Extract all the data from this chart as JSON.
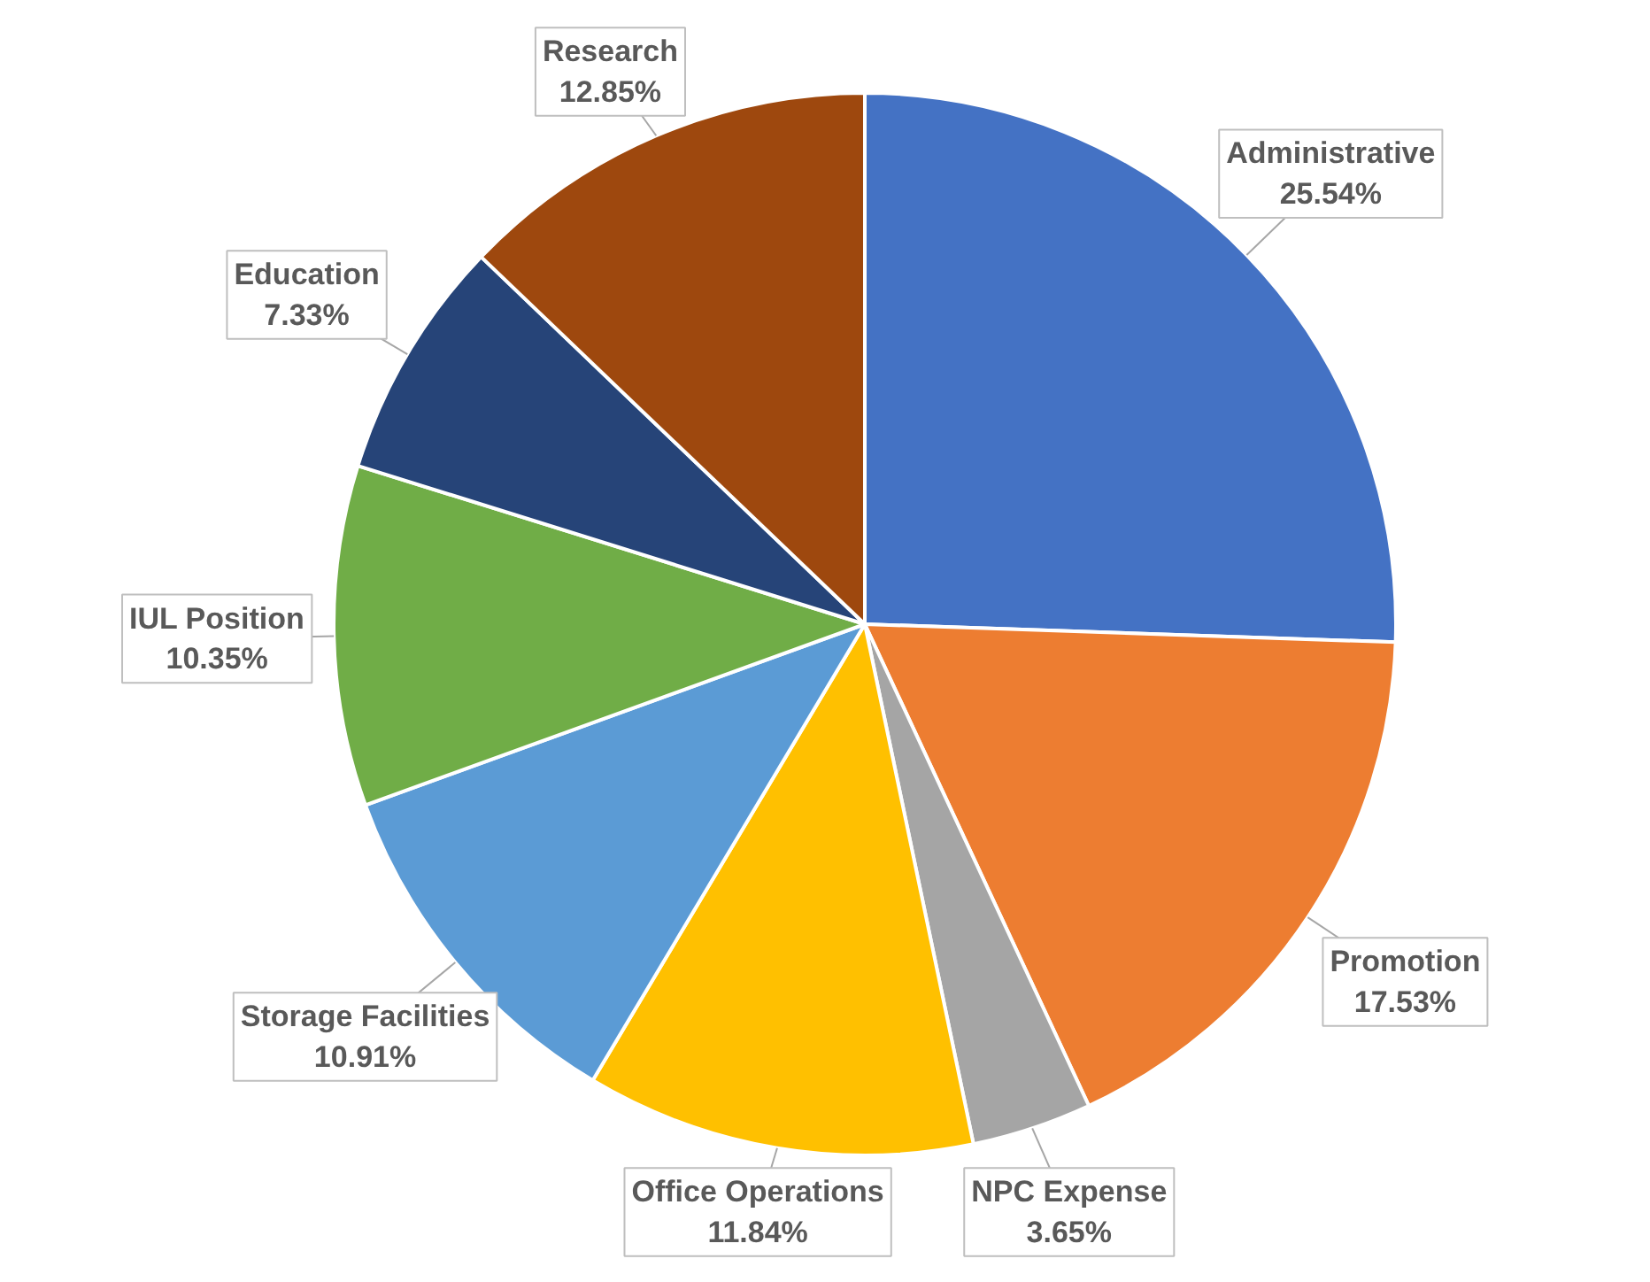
{
  "chart_data": {
    "type": "pie",
    "categories": [
      "Administrative",
      "Promotion",
      "NPC Expense",
      "Office Operations",
      "Storage Facilities",
      "IUL Position",
      "Education",
      "Research"
    ],
    "values": [
      25.54,
      17.53,
      3.65,
      11.84,
      10.91,
      10.35,
      7.33,
      12.85
    ],
    "value_labels": [
      "25.54%",
      "17.53%",
      "3.65%",
      "11.84%",
      "10.91%",
      "10.35%",
      "7.33%",
      "12.85%"
    ],
    "colors": [
      "#4472c4",
      "#ed7d31",
      "#a5a5a5",
      "#ffc000",
      "#5b9bd5",
      "#70ad47",
      "#264478",
      "#9e480e"
    ]
  }
}
